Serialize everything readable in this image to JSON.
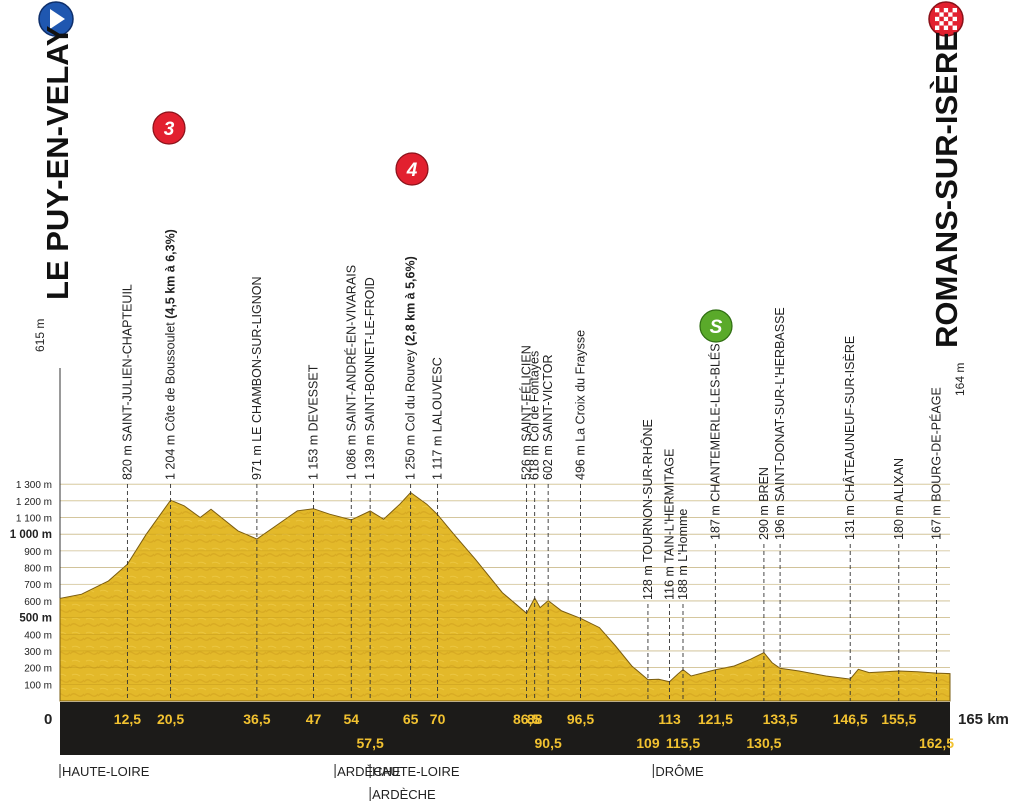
{
  "stage": {
    "start": {
      "name": "LE PUY-EN-VELAY",
      "alt_label": "615 m"
    },
    "finish": {
      "name": "ROMANS-SUR-ISÈRE",
      "alt_label": "164 m"
    },
    "distance_label": "165 km",
    "start_distance_label": "0"
  },
  "climbs": [
    {
      "category": "3",
      "color": "#e2202f"
    },
    {
      "category": "4",
      "color": "#e2202f"
    }
  ],
  "sprint": {
    "symbol": "S",
    "color": "#5aaa2a"
  },
  "y_axis_labels": [
    {
      "v": 100,
      "text": "100 m",
      "bold": false
    },
    {
      "v": 200,
      "text": "200 m",
      "bold": false
    },
    {
      "v": 300,
      "text": "300 m",
      "bold": false
    },
    {
      "v": 400,
      "text": "400 m",
      "bold": false
    },
    {
      "v": 500,
      "text": "500 m",
      "bold": true
    },
    {
      "v": 600,
      "text": "600 m",
      "bold": false
    },
    {
      "v": 700,
      "text": "700 m",
      "bold": false
    },
    {
      "v": 800,
      "text": "800 m",
      "bold": false
    },
    {
      "v": 900,
      "text": "900 m",
      "bold": false
    },
    {
      "v": 1000,
      "text": "1 000 m",
      "bold": true
    },
    {
      "v": 1100,
      "text": "1 100 m",
      "bold": false
    },
    {
      "v": 1200,
      "text": "1 200 m",
      "bold": false
    },
    {
      "v": 1300,
      "text": "1 300 m",
      "bold": false
    }
  ],
  "waypoints": [
    {
      "km": 12.5,
      "km_label": "12,5",
      "row": 0,
      "parts": [
        {
          "t": "820 m SAINT-JULIEN-CHAPTEUIL"
        }
      ]
    },
    {
      "km": 20.5,
      "km_label": "20,5",
      "row": 0,
      "parts": [
        {
          "t": "1 204 m Côte de Boussoulet "
        },
        {
          "t": "(4,5 km à 6,3%)",
          "b": true
        }
      ]
    },
    {
      "km": 36.5,
      "km_label": "36,5",
      "row": 0,
      "parts": [
        {
          "t": "971 m LE CHAMBON-SUR-LIGNON"
        }
      ]
    },
    {
      "km": 47,
      "km_label": "47",
      "row": 0,
      "parts": [
        {
          "t": "1 153 m DEVESSET"
        }
      ]
    },
    {
      "km": 54,
      "km_label": "54",
      "row": 0,
      "parts": [
        {
          "t": "1 086 m SAINT-ANDRÉ-EN-VIVARAIS"
        }
      ]
    },
    {
      "km": 57.5,
      "km_label": "57,5",
      "row": 1,
      "parts": [
        {
          "t": "1 139 m SAINT-BONNET-LE-FROID"
        }
      ]
    },
    {
      "km": 65,
      "km_label": "65",
      "row": 0,
      "parts": [
        {
          "t": "1 250 m Col du Rouvey "
        },
        {
          "t": "(2,8 km à 5,6%)",
          "b": true
        }
      ]
    },
    {
      "km": 70,
      "km_label": "70",
      "row": 0,
      "parts": [
        {
          "t": "1 117 m LALOUVESC"
        }
      ]
    },
    {
      "km": 86.5,
      "km_label": "86,5",
      "row": 0,
      "parts": [
        {
          "t": "526 m SAINT-FÉLICIEN"
        }
      ]
    },
    {
      "km": 88,
      "km_label": "88",
      "row": 0,
      "parts": [
        {
          "t": "618 m Col de Fontayes"
        }
      ]
    },
    {
      "km": 90.5,
      "km_label": "90,5",
      "row": 1,
      "parts": [
        {
          "t": "602 m SAINT-VICTOR"
        }
      ]
    },
    {
      "km": 96.5,
      "km_label": "96,5",
      "row": 0,
      "parts": [
        {
          "t": "496 m La Croix du Fraysse"
        }
      ]
    },
    {
      "km": 109,
      "km_label": "109",
      "row": 1,
      "parts": [
        {
          "t": "128 m TOURNON-SUR-RHÔNE"
        }
      ]
    },
    {
      "km": 113,
      "km_label": "113",
      "row": 0,
      "parts": [
        {
          "t": "116 m TAIN-L'HERMITAGE"
        }
      ]
    },
    {
      "km": 115.5,
      "km_label": "115,5",
      "row": 1,
      "parts": [
        {
          "t": "188 m L'Homme"
        }
      ]
    },
    {
      "km": 121.5,
      "km_label": "121,5",
      "row": 0,
      "parts": [
        {
          "t": "187 m CHANTEMERLE-LES-BLÉS"
        }
      ]
    },
    {
      "km": 130.5,
      "km_label": "130,5",
      "row": 1,
      "parts": [
        {
          "t": "290 m BREN"
        }
      ]
    },
    {
      "km": 133.5,
      "km_label": "133,5",
      "row": 0,
      "parts": [
        {
          "t": "196 m SAINT-DONAT-SUR-L'HERBASSE"
        }
      ]
    },
    {
      "km": 146.5,
      "km_label": "146,5",
      "row": 0,
      "parts": [
        {
          "t": "131 m CHÂTEAUNEUF-SUR-ISÈRE"
        }
      ]
    },
    {
      "km": 155.5,
      "km_label": "155,5",
      "row": 0,
      "parts": [
        {
          "t": "180 m ALIXAN"
        }
      ]
    },
    {
      "km": 162.5,
      "km_label": "162,5",
      "row": 1,
      "parts": [
        {
          "t": "167 m BOURG-DE-PÉAGE"
        }
      ]
    }
  ],
  "regions": [
    {
      "km": 0,
      "label": "HAUTE-LOIRE",
      "row": 0
    },
    {
      "km": 51,
      "label": "ARDÈCHE",
      "row": 0
    },
    {
      "km": 57.5,
      "label": "HAUTE-LOIRE",
      "row": 0
    },
    {
      "km": 57.5,
      "label": "ARDÈCHE",
      "row": 1
    },
    {
      "km": 110,
      "label": "DRÔME",
      "row": 0
    }
  ],
  "colors": {
    "fill": "#e3b92a",
    "fill_dark": "#c99a1e",
    "axis_band": "#1c1b19",
    "km_text": "#f2c230",
    "text": "#222222"
  },
  "chart_data": {
    "type": "area",
    "title": "",
    "xlabel": "",
    "ylabel": "",
    "xlim": [
      0,
      165
    ],
    "ylim": [
      0,
      1300
    ],
    "x_unit": "km",
    "y_unit": "m",
    "grid": true,
    "series": [
      {
        "x": [
          0,
          4,
          9,
          12.5,
          16,
          20.5,
          23,
          26,
          28,
          33,
          36.5,
          40,
          44,
          47,
          50,
          54,
          57.5,
          60,
          63,
          65,
          68,
          70,
          73,
          77,
          82,
          86.5,
          88,
          89,
          90.5,
          93,
          96.5,
          100,
          103,
          106,
          109,
          111,
          113,
          114.5,
          115.5,
          117,
          121.5,
          125,
          128,
          130.5,
          132,
          133.5,
          137,
          142,
          146.5,
          148,
          150,
          155.5,
          159,
          162.5,
          165
        ],
        "y": [
          615,
          640,
          720,
          820,
          1000,
          1204,
          1170,
          1100,
          1150,
          1020,
          971,
          1050,
          1140,
          1153,
          1120,
          1086,
          1139,
          1090,
          1180,
          1250,
          1180,
          1117,
          1000,
          850,
          650,
          526,
          618,
          560,
          602,
          540,
          496,
          440,
          330,
          210,
          128,
          130,
          116,
          160,
          188,
          150,
          187,
          210,
          250,
          290,
          230,
          196,
          180,
          150,
          131,
          190,
          170,
          180,
          175,
          167,
          164
        ]
      }
    ]
  }
}
